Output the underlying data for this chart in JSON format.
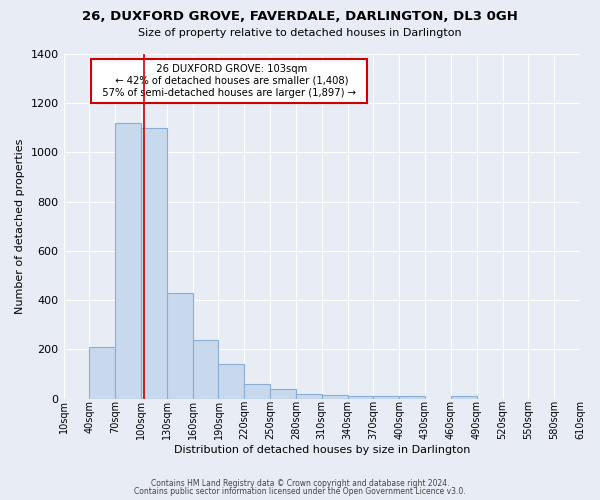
{
  "title": "26, DUXFORD GROVE, FAVERDALE, DARLINGTON, DL3 0GH",
  "subtitle": "Size of property relative to detached houses in Darlington",
  "xlabel": "Distribution of detached houses by size in Darlington",
  "ylabel": "Number of detached properties",
  "bar_color": "#c8d9ee",
  "bar_edge_color": "#8aaed4",
  "background_color": "#e8edf5",
  "grid_color": "#ffffff",
  "property_line_x": 103,
  "bin_edges": [
    10,
    40,
    70,
    100,
    130,
    160,
    190,
    220,
    250,
    280,
    310,
    340,
    370,
    400,
    430,
    460,
    490,
    520,
    550,
    580,
    610
  ],
  "bar_values": [
    0,
    210,
    1120,
    1100,
    430,
    240,
    140,
    60,
    40,
    20,
    15,
    10,
    10,
    10,
    0,
    10,
    0,
    0,
    0,
    0
  ],
  "annotation_title": "26 DUXFORD GROVE: 103sqm",
  "annotation_line1": "← 42% of detached houses are smaller (1,408)",
  "annotation_line2": "57% of semi-detached houses are larger (1,897) →",
  "annotation_box_color": "#ffffff",
  "annotation_box_edge": "#cc0000",
  "ylim": [
    0,
    1400
  ],
  "yticks": [
    0,
    200,
    400,
    600,
    800,
    1000,
    1200,
    1400
  ],
  "footer1": "Contains HM Land Registry data © Crown copyright and database right 2024.",
  "footer2": "Contains public sector information licensed under the Open Government Licence v3.0."
}
